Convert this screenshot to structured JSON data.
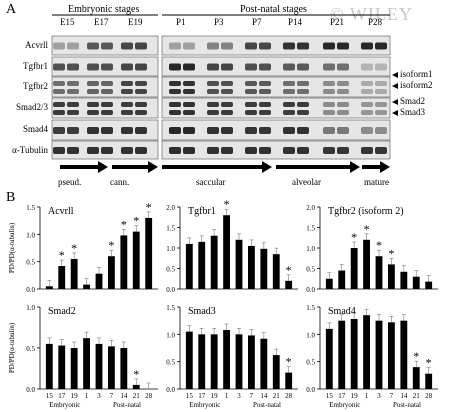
{
  "panel_a": {
    "letter": "A",
    "watermark": "© WILEY",
    "group_headers": [
      "Embryonic stages",
      "Post-natal stages"
    ],
    "time_points": [
      "E15",
      "E17",
      "E19",
      "P1",
      "P3",
      "P7",
      "P14",
      "P21",
      "P28"
    ],
    "blot_rows": [
      "Acvrll",
      "Tgfbr1",
      "Tgfbr2",
      "Smad2/3",
      "Smad4",
      "α-Tubulin"
    ],
    "band_labels": [
      "isoform1",
      "isoform2",
      "Smad2",
      "Smad3"
    ],
    "stages": [
      "pseud.",
      "cann.",
      "saccular",
      "alveolar",
      "mature"
    ]
  },
  "panel_b": {
    "letter": "B",
    "ylabel": "PD/PD(α-tubulin)",
    "x_ticks": [
      "15",
      "17",
      "19",
      "1",
      "3",
      "7",
      "14",
      "21",
      "28"
    ],
    "group_labels": [
      "Embryonic",
      "Post-natal"
    ]
  },
  "chart_data": [
    {
      "type": "bar",
      "title": "Acvrll",
      "ylim": [
        0,
        1.5
      ],
      "yticks": [
        "0.0",
        "0.5",
        "1.0",
        "1.5"
      ],
      "categories": [
        "15",
        "17",
        "19",
        "1",
        "3",
        "7",
        "14",
        "21",
        "28"
      ],
      "values": [
        0.05,
        0.42,
        0.55,
        0.08,
        0.28,
        0.6,
        0.98,
        1.05,
        1.3
      ],
      "significant": [
        false,
        true,
        true,
        false,
        false,
        true,
        true,
        true,
        true
      ]
    },
    {
      "type": "bar",
      "title": "Tgfbr1",
      "ylim": [
        0,
        2.0
      ],
      "yticks": [
        "0.0",
        "0.5",
        "1.0",
        "1.5",
        "2.0"
      ],
      "categories": [
        "15",
        "17",
        "19",
        "1",
        "3",
        "7",
        "14",
        "21",
        "28"
      ],
      "values": [
        1.1,
        1.15,
        1.3,
        1.8,
        1.2,
        1.05,
        0.98,
        0.85,
        0.2
      ],
      "significant": [
        false,
        false,
        false,
        true,
        false,
        false,
        false,
        false,
        true
      ]
    },
    {
      "type": "bar",
      "title": "Tgfbr2 (isoform 2)",
      "ylim": [
        0,
        2.0
      ],
      "yticks": [
        "0.0",
        "0.5",
        "1.0",
        "1.5",
        "2.0"
      ],
      "categories": [
        "15",
        "17",
        "19",
        "1",
        "3",
        "7",
        "14",
        "21",
        "28"
      ],
      "values": [
        0.25,
        0.45,
        1.0,
        1.2,
        0.8,
        0.6,
        0.42,
        0.3,
        0.18
      ],
      "significant": [
        false,
        false,
        true,
        true,
        true,
        true,
        false,
        false,
        false
      ]
    },
    {
      "type": "bar",
      "title": "Smad2",
      "ylim": [
        0,
        1.0
      ],
      "yticks": [
        "0.0",
        "0.5",
        "1.0"
      ],
      "categories": [
        "15",
        "17",
        "19",
        "1",
        "3",
        "7",
        "14",
        "21",
        "28"
      ],
      "values": [
        0.55,
        0.53,
        0.5,
        0.62,
        0.55,
        0.52,
        0.5,
        0.05,
        0.0
      ],
      "significant": [
        false,
        false,
        false,
        false,
        false,
        false,
        false,
        true,
        false
      ]
    },
    {
      "type": "bar",
      "title": "Smad3",
      "ylim": [
        0,
        1.5
      ],
      "yticks": [
        "0.0",
        "0.5",
        "1.0",
        "1.5"
      ],
      "categories": [
        "15",
        "17",
        "19",
        "1",
        "3",
        "7",
        "14",
        "21",
        "28"
      ],
      "values": [
        1.05,
        1.0,
        1.0,
        1.08,
        1.0,
        0.98,
        0.92,
        0.62,
        0.3
      ],
      "significant": [
        false,
        false,
        false,
        false,
        false,
        false,
        false,
        false,
        true
      ]
    },
    {
      "type": "bar",
      "title": "Smad4",
      "ylim": [
        0,
        1.5
      ],
      "yticks": [
        "0.0",
        "0.5",
        "1.0",
        "1.5"
      ],
      "categories": [
        "15",
        "17",
        "19",
        "1",
        "3",
        "7",
        "14",
        "21",
        "28"
      ],
      "values": [
        1.1,
        1.25,
        1.28,
        1.35,
        1.25,
        1.22,
        1.25,
        0.4,
        0.28
      ],
      "significant": [
        false,
        false,
        false,
        false,
        false,
        false,
        false,
        true,
        true
      ]
    }
  ]
}
